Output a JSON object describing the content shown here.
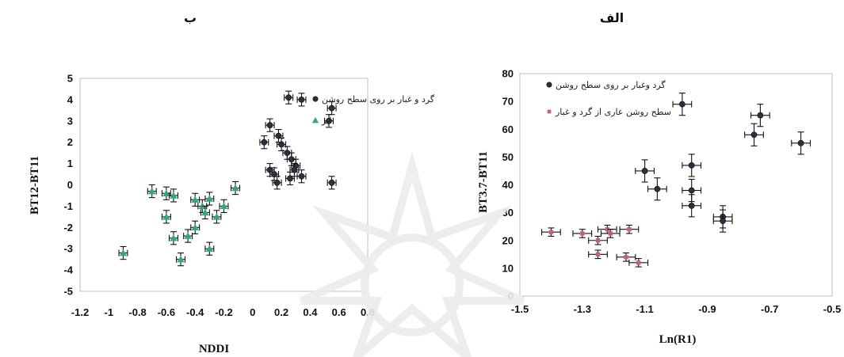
{
  "panel_labels": {
    "left": "ب",
    "right": "الف"
  },
  "colors": {
    "dark_dust": "#2b2f3f",
    "green_cloud": "#2fa983",
    "pink_ground": "#c7607a",
    "error_bar": "#111111"
  },
  "chart_data": [
    {
      "id": "left",
      "type": "scatter",
      "panel_label": "ب",
      "xlabel": "NDDI",
      "ylabel": "BT12-BT11",
      "xlim": [
        -1.2,
        0.8
      ],
      "ylim": [
        -5,
        5
      ],
      "xticks": [
        -1.2,
        -1,
        -0.8,
        -0.6,
        -0.4,
        -0.2,
        0,
        0.2,
        0.4,
        0.6,
        0.8
      ],
      "xtick_labels": [
        "-1.2",
        "-1",
        "-0.8",
        "-0.6",
        "-0.4",
        "-0.2",
        "0",
        "0.2",
        "0.4",
        "0.6",
        "0.8"
      ],
      "yticks": [
        -5,
        -4,
        -3,
        -2,
        -1,
        0,
        1,
        2,
        3,
        4,
        5
      ],
      "ytick_labels": [
        "-5",
        "-4",
        "-3",
        "-2",
        "-1",
        "0",
        "1",
        "2",
        "3",
        "4",
        "5"
      ],
      "legend": [
        {
          "label": "گرد و غبار بر روی سطح روشن",
          "marker": "circle",
          "color": "#2b2f3f"
        },
        {
          "label": "ابر",
          "marker": "triangle",
          "color": "#2fa983"
        }
      ],
      "series": [
        {
          "name": "گرد و غبار بر روی سطح روشن",
          "marker": "circle",
          "color": "#2b2f3f",
          "xerr": 0.03,
          "yerr": 0.3,
          "points": [
            [
              0.25,
              4.1
            ],
            [
              0.34,
              4.0
            ],
            [
              0.55,
              3.6
            ],
            [
              0.53,
              3.0
            ],
            [
              0.12,
              2.8
            ],
            [
              0.08,
              2.0
            ],
            [
              0.18,
              2.3
            ],
            [
              0.2,
              1.9
            ],
            [
              0.24,
              1.5
            ],
            [
              0.27,
              1.2
            ],
            [
              0.3,
              0.9
            ],
            [
              0.12,
              0.7
            ],
            [
              0.15,
              0.5
            ],
            [
              0.17,
              0.1
            ],
            [
              0.26,
              0.3
            ],
            [
              0.34,
              0.4
            ],
            [
              0.55,
              0.1
            ],
            [
              0.29,
              0.7
            ]
          ]
        },
        {
          "name": "ابر",
          "marker": "triangle",
          "color": "#2fa983",
          "xerr": 0.03,
          "yerr": 0.3,
          "points": [
            [
              -0.7,
              -0.3
            ],
            [
              -0.6,
              -0.4
            ],
            [
              -0.55,
              -0.5
            ],
            [
              -0.6,
              -1.5
            ],
            [
              -0.55,
              -2.5
            ],
            [
              -0.5,
              -3.5
            ],
            [
              -0.9,
              -3.2
            ],
            [
              -0.45,
              -2.4
            ],
            [
              -0.4,
              -2.0
            ],
            [
              -0.4,
              -0.7
            ],
            [
              -0.35,
              -1.0
            ],
            [
              -0.33,
              -1.3
            ],
            [
              -0.3,
              -0.65
            ],
            [
              -0.25,
              -1.5
            ],
            [
              -0.3,
              -3.0
            ],
            [
              -0.2,
              -1.0
            ],
            [
              -0.12,
              -0.15
            ]
          ]
        }
      ]
    },
    {
      "id": "right",
      "type": "scatter",
      "panel_label": "الف",
      "xlabel": "Ln(R1)",
      "ylabel": "BT3.7-BT11",
      "xlim": [
        -1.5,
        -0.5
      ],
      "ylim": [
        0,
        80
      ],
      "xticks": [
        -1.5,
        -1.3,
        -1.1,
        -0.9,
        -0.7,
        -0.5
      ],
      "xtick_labels": [
        "-1.5",
        "-1.3",
        "-1.1",
        "-0.9",
        "-0.7",
        "-0.5"
      ],
      "yticks": [
        0,
        10,
        20,
        30,
        40,
        50,
        60,
        70,
        80
      ],
      "ytick_labels": [
        "0",
        "10",
        "20",
        "30",
        "40",
        "50",
        "60",
        "70",
        "80"
      ],
      "legend": [
        {
          "label": "گرد وغبار بر روی سطح روشن",
          "marker": "circle",
          "color": "#2b2f3f"
        },
        {
          "label": "سطح روشن عاری از گرد و غبار",
          "marker": "square",
          "color": "#c7607a"
        }
      ],
      "series": [
        {
          "name": "گرد وغبار بر روی سطح روشن",
          "marker": "circle",
          "color": "#2b2f3f",
          "xerr": 0.03,
          "yerr": 4,
          "points": [
            [
              -0.98,
              69
            ],
            [
              -0.73,
              65
            ],
            [
              -0.75,
              58
            ],
            [
              -0.6,
              55
            ],
            [
              -1.1,
              45
            ],
            [
              -0.95,
              47
            ],
            [
              -1.06,
              38.5
            ],
            [
              -0.95,
              38
            ],
            [
              -0.95,
              32.5
            ],
            [
              -0.85,
              28.5
            ],
            [
              -0.85,
              27
            ]
          ]
        },
        {
          "name": "سطح روشن عاری از گرد و غبار",
          "marker": "square",
          "color": "#c7607a",
          "xerr": 0.03,
          "yerr": 1.5,
          "points": [
            [
              -1.4,
              23
            ],
            [
              -1.3,
              22.5
            ],
            [
              -1.25,
              20
            ],
            [
              -1.22,
              24
            ],
            [
              -1.21,
              22.5
            ],
            [
              -1.15,
              24
            ],
            [
              -1.25,
              15
            ],
            [
              -1.16,
              14
            ],
            [
              -1.12,
              12
            ]
          ]
        }
      ]
    }
  ]
}
